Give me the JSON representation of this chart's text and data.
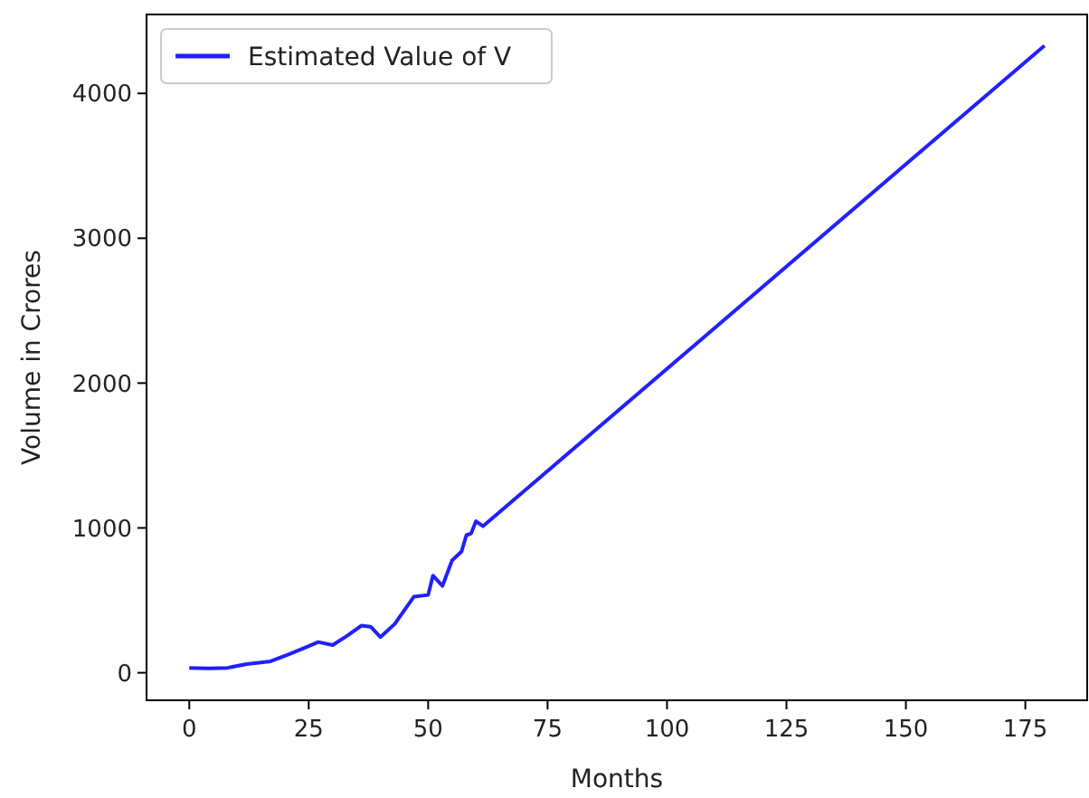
{
  "chart_data": {
    "type": "line",
    "xlabel": "Months",
    "ylabel": "Volume in Crores",
    "x": [
      0,
      4,
      8,
      12,
      17,
      21,
      25,
      27,
      30,
      33,
      36,
      38,
      40,
      43,
      47,
      50,
      51,
      53,
      55,
      57,
      58,
      59,
      60,
      61.5,
      179
    ],
    "series": [
      {
        "name": "Estimated Value of V",
        "color": "#2020ff",
        "values": [
          34,
          30,
          34,
          60,
          79,
          130,
          184,
          212,
          191,
          254,
          325,
          317,
          246,
          337,
          525,
          537,
          671,
          600,
          775,
          838,
          950,
          962,
          1046,
          1012,
          4330
        ]
      }
    ],
    "xlim": [
      -8.95,
      187.95
    ],
    "ylim": [
      -190,
      4545
    ],
    "xticks": [
      0,
      25,
      50,
      75,
      100,
      125,
      150,
      175
    ],
    "yticks": [
      0,
      1000,
      2000,
      3000,
      4000
    ],
    "legend": "top left",
    "grid": false,
    "marker": "none",
    "line_style": "solid"
  }
}
